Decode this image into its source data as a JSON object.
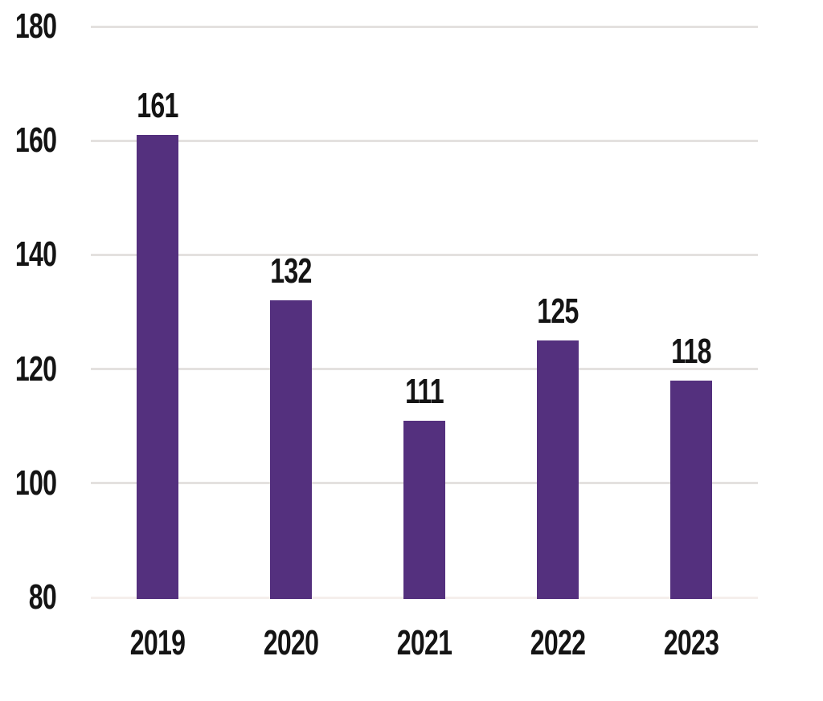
{
  "chart_data": {
    "type": "bar",
    "title": "",
    "xlabel": "",
    "ylabel": "",
    "categories": [
      "2019",
      "2020",
      "2021",
      "2022",
      "2023"
    ],
    "values": [
      161,
      132,
      111,
      125,
      118
    ],
    "data_labels": [
      "161",
      "132",
      "111",
      "125",
      "118"
    ],
    "y_ticks": [
      180,
      160,
      140,
      120,
      100,
      80
    ],
    "ylim": [
      80,
      180
    ],
    "grid": "horizontal",
    "legend_position": "none",
    "colors": {
      "bar": "#54307e",
      "gridline": "#e4e1df",
      "baseline_gridline": "#f5efec",
      "text": "#141414",
      "background": "#ffffff"
    }
  }
}
